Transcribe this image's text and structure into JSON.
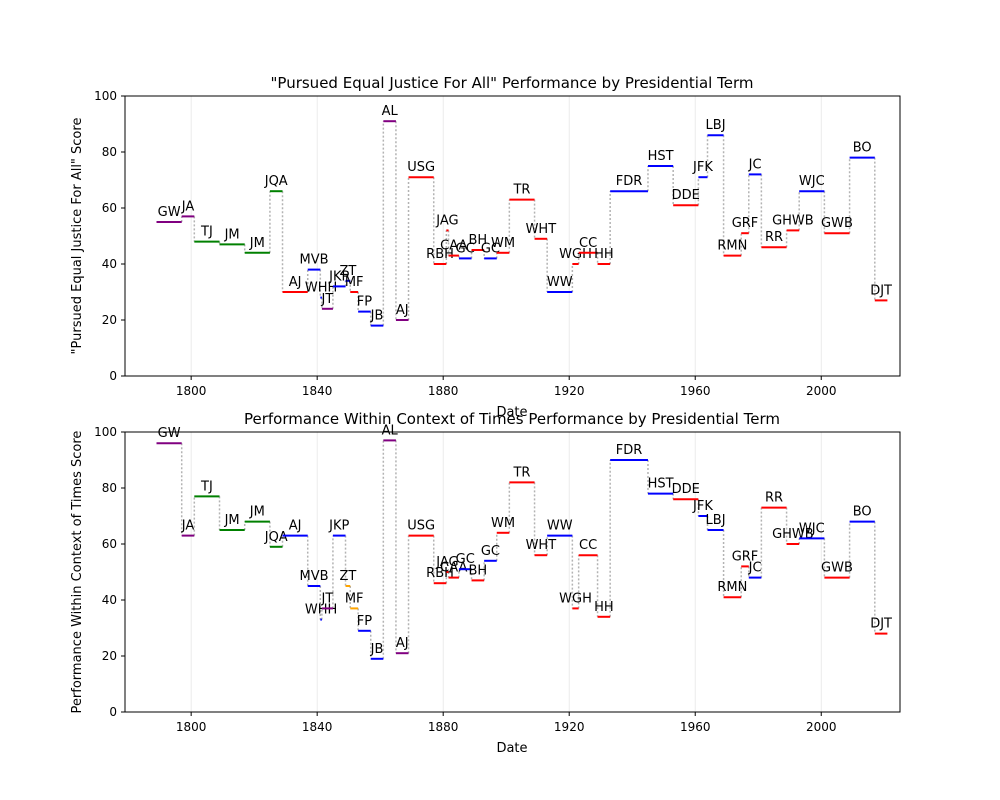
{
  "chart_data": [
    {
      "type": "step",
      "title": "\"Pursued Equal Justice For All\" Performance by Presidential Term",
      "xlabel": "Date",
      "ylabel": "\"Pursued Equal Justice For All\" Score",
      "xlim": [
        1779,
        2025
      ],
      "ylim": [
        0,
        100
      ],
      "xticks": [
        1800,
        1840,
        1880,
        1920,
        1960,
        2000
      ],
      "yticks": [
        0,
        20,
        40,
        60,
        80,
        100
      ],
      "grid": "vertical",
      "party_colors": {
        "F": "#800080",
        "DR": "#008000",
        "D": "#ff0000",
        "W": "#0000ff",
        "R": "#ff0000",
        "U": "#800080"
      },
      "terms": [
        {
          "label": "GW",
          "start": 1789,
          "end": 1797,
          "party": "F",
          "value": 55
        },
        {
          "label": "JA",
          "start": 1797,
          "end": 1801,
          "party": "F",
          "value": 57
        },
        {
          "label": "TJ",
          "start": 1801,
          "end": 1809,
          "party": "DR",
          "value": 48
        },
        {
          "label": "JM",
          "start": 1809,
          "end": 1817,
          "party": "DR",
          "value": 47
        },
        {
          "label": "JM",
          "start": 1817,
          "end": 1825,
          "party": "DR",
          "value": 44
        },
        {
          "label": "JQA",
          "start": 1825,
          "end": 1829,
          "party": "DR",
          "value": 66
        },
        {
          "label": "AJ",
          "start": 1829,
          "end": 1837,
          "party": "D",
          "value": 30
        },
        {
          "label": "MVB",
          "start": 1837,
          "end": 1841,
          "party": "W",
          "value": 38
        },
        {
          "label": "WHH",
          "start": 1841,
          "end": 1841.5,
          "party": "W",
          "value": 28
        },
        {
          "label": "JT",
          "start": 1841.5,
          "end": 1845,
          "party": "U",
          "value": 24
        },
        {
          "label": "JKP",
          "start": 1845,
          "end": 1849,
          "party": "W",
          "value": 32
        },
        {
          "label": "ZT",
          "start": 1849,
          "end": 1850.5,
          "party": "W",
          "value": 34
        },
        {
          "label": "MF",
          "start": 1850.5,
          "end": 1853,
          "party": "D",
          "value": 30
        },
        {
          "label": "FP",
          "start": 1853,
          "end": 1857,
          "party": "W",
          "value": 23
        },
        {
          "label": "JB",
          "start": 1857,
          "end": 1861,
          "party": "W",
          "value": 18
        },
        {
          "label": "AL",
          "start": 1861,
          "end": 1865,
          "party": "U",
          "value": 91
        },
        {
          "label": "AJ",
          "start": 1865,
          "end": 1869,
          "party": "U",
          "value": 20
        },
        {
          "label": "USG",
          "start": 1869,
          "end": 1877,
          "party": "R",
          "value": 71
        },
        {
          "label": "RBH",
          "start": 1877,
          "end": 1881,
          "party": "R",
          "value": 40
        },
        {
          "label": "JAG",
          "start": 1881,
          "end": 1881.7,
          "party": "R",
          "value": 52
        },
        {
          "label": "CAA",
          "start": 1881.7,
          "end": 1885,
          "party": "R",
          "value": 43
        },
        {
          "label": "GC",
          "start": 1885,
          "end": 1889,
          "party": "W",
          "value": 42
        },
        {
          "label": "BH",
          "start": 1889,
          "end": 1893,
          "party": "R",
          "value": 45
        },
        {
          "label": "GC",
          "start": 1893,
          "end": 1897,
          "party": "W",
          "value": 42
        },
        {
          "label": "WM",
          "start": 1897,
          "end": 1901,
          "party": "R",
          "value": 44
        },
        {
          "label": "TR",
          "start": 1901,
          "end": 1909,
          "party": "R",
          "value": 63
        },
        {
          "label": "WHT",
          "start": 1909,
          "end": 1913,
          "party": "R",
          "value": 49
        },
        {
          "label": "WW",
          "start": 1913,
          "end": 1921,
          "party": "W",
          "value": 30
        },
        {
          "label": "WGH",
          "start": 1921,
          "end": 1923,
          "party": "R",
          "value": 40
        },
        {
          "label": "CC",
          "start": 1923,
          "end": 1929,
          "party": "R",
          "value": 44
        },
        {
          "label": "HH",
          "start": 1929,
          "end": 1933,
          "party": "R",
          "value": 40
        },
        {
          "label": "FDR",
          "start": 1933,
          "end": 1945,
          "party": "W",
          "value": 66
        },
        {
          "label": "HST",
          "start": 1945,
          "end": 1953,
          "party": "W",
          "value": 75
        },
        {
          "label": "DDE",
          "start": 1953,
          "end": 1961,
          "party": "R",
          "value": 61
        },
        {
          "label": "JFK",
          "start": 1961,
          "end": 1963.9,
          "party": "W",
          "value": 71
        },
        {
          "label": "LBJ",
          "start": 1963.9,
          "end": 1969,
          "party": "W",
          "value": 86
        },
        {
          "label": "RMN",
          "start": 1969,
          "end": 1974.6,
          "party": "R",
          "value": 43
        },
        {
          "label": "GRF",
          "start": 1974.6,
          "end": 1977,
          "party": "R",
          "value": 51
        },
        {
          "label": "JC",
          "start": 1977,
          "end": 1981,
          "party": "W",
          "value": 72
        },
        {
          "label": "RR",
          "start": 1981,
          "end": 1989,
          "party": "R",
          "value": 46
        },
        {
          "label": "GHWB",
          "start": 1989,
          "end": 1993,
          "party": "R",
          "value": 52
        },
        {
          "label": "WJC",
          "start": 1993,
          "end": 2001,
          "party": "W",
          "value": 66
        },
        {
          "label": "GWB",
          "start": 2001,
          "end": 2009,
          "party": "R",
          "value": 51
        },
        {
          "label": "BO",
          "start": 2009,
          "end": 2017,
          "party": "W",
          "value": 78
        },
        {
          "label": "DJT",
          "start": 2017,
          "end": 2021,
          "party": "R",
          "value": 27
        }
      ]
    },
    {
      "type": "step",
      "title": "Performance Within Context of Times Performance by Presidential Term",
      "xlabel": "Date",
      "ylabel": "Performance Within Context of Times Score",
      "xlim": [
        1779,
        2025
      ],
      "ylim": [
        0,
        100
      ],
      "xticks": [
        1800,
        1840,
        1880,
        1920,
        1960,
        2000
      ],
      "yticks": [
        0,
        20,
        40,
        60,
        80,
        100
      ],
      "grid": "vertical",
      "party_colors": {
        "F": "#800080",
        "DR": "#008000",
        "D": "#ff0000",
        "W": "#0000ff",
        "R": "#ff0000",
        "U": "#800080",
        "Wg": "#ffa500"
      },
      "terms": [
        {
          "label": "GW",
          "start": 1789,
          "end": 1797,
          "party": "F",
          "value": 96
        },
        {
          "label": "JA",
          "start": 1797,
          "end": 1801,
          "party": "F",
          "value": 63
        },
        {
          "label": "TJ",
          "start": 1801,
          "end": 1809,
          "party": "DR",
          "value": 77
        },
        {
          "label": "JM",
          "start": 1809,
          "end": 1817,
          "party": "DR",
          "value": 65
        },
        {
          "label": "JM",
          "start": 1817,
          "end": 1825,
          "party": "DR",
          "value": 68
        },
        {
          "label": "JQA",
          "start": 1825,
          "end": 1829,
          "party": "DR",
          "value": 59
        },
        {
          "label": "AJ",
          "start": 1829,
          "end": 1837,
          "party": "W",
          "value": 63
        },
        {
          "label": "MVB",
          "start": 1837,
          "end": 1841,
          "party": "W",
          "value": 45
        },
        {
          "label": "WHH",
          "start": 1841,
          "end": 1841.5,
          "party": "W",
          "value": 33
        },
        {
          "label": "JT",
          "start": 1841.5,
          "end": 1845,
          "party": "U",
          "value": 37
        },
        {
          "label": "JKP",
          "start": 1845,
          "end": 1849,
          "party": "W",
          "value": 63
        },
        {
          "label": "ZT",
          "start": 1849,
          "end": 1850.5,
          "party": "Wg",
          "value": 45
        },
        {
          "label": "MF",
          "start": 1850.5,
          "end": 1853,
          "party": "Wg",
          "value": 37
        },
        {
          "label": "FP",
          "start": 1853,
          "end": 1857,
          "party": "W",
          "value": 29
        },
        {
          "label": "JB",
          "start": 1857,
          "end": 1861,
          "party": "W",
          "value": 19
        },
        {
          "label": "AL",
          "start": 1861,
          "end": 1865,
          "party": "U",
          "value": 97
        },
        {
          "label": "AJ",
          "start": 1865,
          "end": 1869,
          "party": "U",
          "value": 21
        },
        {
          "label": "USG",
          "start": 1869,
          "end": 1877,
          "party": "R",
          "value": 63
        },
        {
          "label": "RBH",
          "start": 1877,
          "end": 1881,
          "party": "R",
          "value": 46
        },
        {
          "label": "JAG",
          "start": 1881,
          "end": 1881.7,
          "party": "R",
          "value": 50
        },
        {
          "label": "CAA",
          "start": 1881.7,
          "end": 1885,
          "party": "R",
          "value": 48
        },
        {
          "label": "GC",
          "start": 1885,
          "end": 1889,
          "party": "W",
          "value": 51
        },
        {
          "label": "BH",
          "start": 1889,
          "end": 1893,
          "party": "R",
          "value": 47
        },
        {
          "label": "GC",
          "start": 1893,
          "end": 1897,
          "party": "W",
          "value": 54
        },
        {
          "label": "WM",
          "start": 1897,
          "end": 1901,
          "party": "R",
          "value": 64
        },
        {
          "label": "TR",
          "start": 1901,
          "end": 1909,
          "party": "R",
          "value": 82
        },
        {
          "label": "WHT",
          "start": 1909,
          "end": 1913,
          "party": "R",
          "value": 56
        },
        {
          "label": "WW",
          "start": 1913,
          "end": 1921,
          "party": "W",
          "value": 63
        },
        {
          "label": "WGH",
          "start": 1921,
          "end": 1923,
          "party": "R",
          "value": 37
        },
        {
          "label": "CC",
          "start": 1923,
          "end": 1929,
          "party": "R",
          "value": 56
        },
        {
          "label": "HH",
          "start": 1929,
          "end": 1933,
          "party": "R",
          "value": 34
        },
        {
          "label": "FDR",
          "start": 1933,
          "end": 1945,
          "party": "W",
          "value": 90
        },
        {
          "label": "HST",
          "start": 1945,
          "end": 1953,
          "party": "W",
          "value": 78
        },
        {
          "label": "DDE",
          "start": 1953,
          "end": 1961,
          "party": "R",
          "value": 76
        },
        {
          "label": "JFK",
          "start": 1961,
          "end": 1963.9,
          "party": "W",
          "value": 70
        },
        {
          "label": "LBJ",
          "start": 1963.9,
          "end": 1969,
          "party": "W",
          "value": 65
        },
        {
          "label": "RMN",
          "start": 1969,
          "end": 1974.6,
          "party": "R",
          "value": 41
        },
        {
          "label": "GRF",
          "start": 1974.6,
          "end": 1977,
          "party": "R",
          "value": 52
        },
        {
          "label": "JC",
          "start": 1977,
          "end": 1981,
          "party": "W",
          "value": 48
        },
        {
          "label": "RR",
          "start": 1981,
          "end": 1989,
          "party": "R",
          "value": 73
        },
        {
          "label": "GHWB",
          "start": 1989,
          "end": 1993,
          "party": "R",
          "value": 60
        },
        {
          "label": "WJC",
          "start": 1993,
          "end": 2001,
          "party": "W",
          "value": 62
        },
        {
          "label": "GWB",
          "start": 2001,
          "end": 2009,
          "party": "R",
          "value": 48
        },
        {
          "label": "BO",
          "start": 2009,
          "end": 2017,
          "party": "W",
          "value": 68
        },
        {
          "label": "DJT",
          "start": 2017,
          "end": 2021,
          "party": "R",
          "value": 28
        }
      ]
    }
  ]
}
